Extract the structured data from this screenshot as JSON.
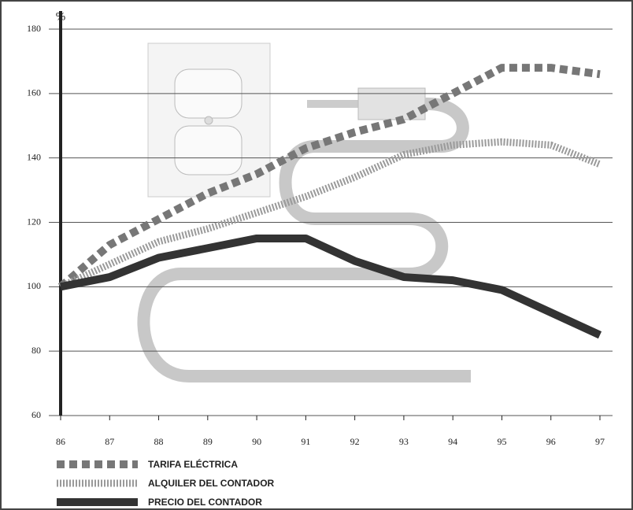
{
  "chart_data": {
    "type": "line",
    "y_label": "%",
    "x": [
      86,
      87,
      88,
      89,
      90,
      91,
      92,
      93,
      94,
      95,
      96,
      97
    ],
    "xlim": [
      86,
      97
    ],
    "xticks": [
      86,
      87,
      88,
      89,
      90,
      91,
      92,
      93,
      94,
      95,
      96,
      97
    ],
    "ylim": [
      60,
      180
    ],
    "yticks": [
      60,
      80,
      100,
      120,
      140,
      160,
      180
    ],
    "grid": true,
    "series": [
      {
        "name": "TARIFA ELÉCTRICA",
        "color": "#777777",
        "style": "dashed",
        "values": [
          100,
          113,
          121,
          129,
          135,
          143,
          148,
          152,
          160,
          168,
          168,
          166
        ]
      },
      {
        "name": "ALQUILER DEL CONTADOR",
        "color": "#9a9a9a",
        "style": "hatched",
        "values": [
          100,
          107,
          114,
          118,
          123,
          128,
          134,
          141,
          144,
          145,
          144,
          138
        ]
      },
      {
        "name": "PRECIO DEL CONTADOR",
        "color": "#333333",
        "style": "solid",
        "values": [
          100,
          103,
          109,
          112,
          115,
          115,
          108,
          103,
          102,
          99,
          92,
          85
        ]
      }
    ]
  }
}
